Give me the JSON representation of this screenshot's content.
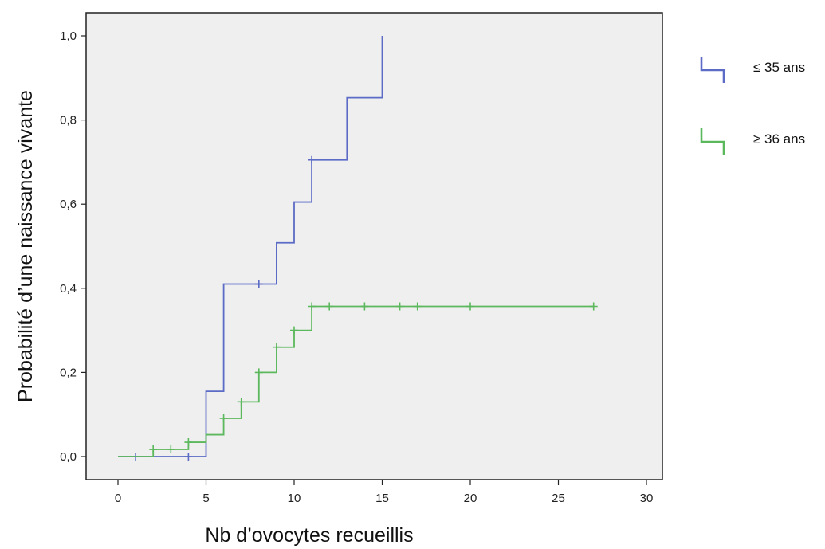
{
  "chart_data": {
    "type": "line",
    "step": true,
    "xlabel": "Nb d’ovocytes recueillis",
    "ylabel": "Probabilité d’une naissance vivante",
    "xlim": [
      0,
      30
    ],
    "ylim": [
      0,
      1.0
    ],
    "xticks": [
      0,
      5,
      10,
      15,
      20,
      25,
      30
    ],
    "xtick_labels": [
      "0",
      "5",
      "10",
      "15",
      "20",
      "25",
      "30"
    ],
    "yticks": [
      0,
      0.2,
      0.4,
      0.6,
      0.8,
      1.0
    ],
    "ytick_labels": [
      "0,0",
      "0,2",
      "0,4",
      "0,6",
      "0,8",
      "1,0"
    ],
    "grid": false,
    "legend_position": "right",
    "background": "#efefef",
    "series": [
      {
        "name": "≤ 35 ans",
        "color": "#5b6bc6",
        "x": [
          0,
          5,
          6,
          9,
          10,
          11,
          13,
          15,
          15
        ],
        "y": [
          0,
          0.155,
          0.41,
          0.508,
          0.605,
          0.705,
          0.853,
          0.853,
          1.0
        ],
        "censored": [
          [
            1,
            0
          ],
          [
            4,
            0
          ],
          [
            8,
            0.41
          ],
          [
            11,
            0.705
          ]
        ]
      },
      {
        "name": "≥ 36 ans",
        "color": "#5cb85c",
        "x": [
          0,
          2,
          4,
          5,
          6,
          7,
          8,
          9,
          10,
          11,
          27
        ],
        "y": [
          0,
          0.017,
          0.034,
          0.052,
          0.091,
          0.13,
          0.2,
          0.26,
          0.3,
          0.357,
          0.357
        ],
        "censored": [
          [
            2,
            0.017
          ],
          [
            3,
            0.017
          ],
          [
            4,
            0.034
          ],
          [
            6,
            0.091
          ],
          [
            7,
            0.13
          ],
          [
            8,
            0.2
          ],
          [
            9,
            0.26
          ],
          [
            10,
            0.3
          ],
          [
            11,
            0.357
          ],
          [
            12,
            0.357
          ],
          [
            14,
            0.357
          ],
          [
            16,
            0.357
          ],
          [
            17,
            0.357
          ],
          [
            20,
            0.357
          ],
          [
            27,
            0.357
          ]
        ]
      }
    ]
  }
}
